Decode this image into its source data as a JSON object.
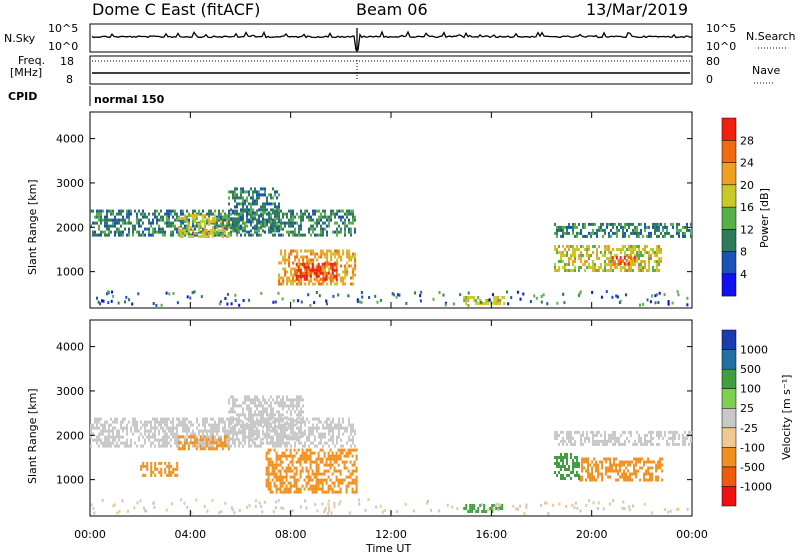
{
  "header": {
    "title": "Dome C East (fitACF)",
    "beam": "Beam 06",
    "date": "13/Mar/2019"
  },
  "top_panels": {
    "nsky_label": "N.Sky",
    "nsky_ticks": [
      "10^5",
      "10^0"
    ],
    "nsearch_label": "N.Search",
    "nsearch_ticks": [
      "10^5",
      "10^0"
    ],
    "freq_label_line1": "Freq.",
    "freq_label_line2": "[MHz]",
    "freq_ticks": [
      "18",
      "8"
    ],
    "nave_label": "Nave",
    "nave_ticks": [
      "80",
      "0"
    ],
    "cpid_label": "CPID",
    "cpid_value": "normal 150"
  },
  "x_axis": {
    "label": "Time UT",
    "ticks": [
      "00:00",
      "04:00",
      "08:00",
      "12:00",
      "16:00",
      "20:00",
      "00:00"
    ]
  },
  "colors": {
    "power_scale": [
      "#1010f0",
      "#1a52b8",
      "#2f7a5a",
      "#58b04a",
      "#c8c828",
      "#f0a020",
      "#f06a10",
      "#f02010"
    ],
    "velocity_scale": [
      "#f01010",
      "#f05a10",
      "#f09020",
      "#f0c890",
      "#c8c8c8",
      "#80d050",
      "#40a040",
      "#2070a0",
      "#1a3cb0"
    ],
    "ground_scatter": "#b4b4b4"
  },
  "chart_data": [
    {
      "type": "heatmap",
      "name_panel": "Power",
      "title": "",
      "xlabel": "Time UT",
      "ylabel": "Slant Range [km]",
      "xlim": [
        0,
        24
      ],
      "ylim": [
        180,
        4600
      ],
      "yticks": [
        "1000",
        "2000",
        "3000",
        "4000"
      ],
      "colorbar_label": "Power [dB]",
      "colorbar_ticks": [
        "4",
        "8",
        "12",
        "16",
        "20",
        "24",
        "28"
      ],
      "colorbar_range": [
        0,
        32
      ],
      "regions": [
        {
          "t": [
            0.0,
            10.6
          ],
          "r": [
            1850,
            2400
          ],
          "level": 9
        },
        {
          "t": [
            3.5,
            5.5
          ],
          "r": [
            1800,
            2300
          ],
          "level": 18
        },
        {
          "t": [
            5.5,
            7.5
          ],
          "r": [
            1900,
            2900
          ],
          "level": 11
        },
        {
          "t": [
            7.5,
            10.6
          ],
          "r": [
            700,
            1500
          ],
          "level": 22
        },
        {
          "t": [
            8.2,
            9.8
          ],
          "r": [
            800,
            1200
          ],
          "level": 28
        },
        {
          "t": [
            14.8,
            16.5
          ],
          "r": [
            300,
            450
          ],
          "level": 18
        },
        {
          "t": [
            18.5,
            24.0
          ],
          "r": [
            1800,
            2100
          ],
          "level": 9
        },
        {
          "t": [
            18.5,
            22.8
          ],
          "r": [
            1000,
            1600
          ],
          "level": 16
        },
        {
          "t": [
            20.8,
            21.8
          ],
          "r": [
            1200,
            1350
          ],
          "level": 24
        }
      ]
    },
    {
      "type": "heatmap",
      "name_panel": "Velocity",
      "title": "",
      "xlabel": "Time UT",
      "ylabel": "Slant Range [km]",
      "xlim": [
        0,
        24
      ],
      "ylim": [
        180,
        4600
      ],
      "yticks": [
        "1000",
        "2000",
        "3000",
        "4000"
      ],
      "colorbar_label": "Velocity [m s⁻¹]",
      "colorbar_ticks": [
        "1000",
        "500",
        "100",
        "25",
        "-25",
        "-100",
        "-500",
        "-1000"
      ],
      "regions": [
        {
          "t": [
            0.0,
            10.6
          ],
          "r": [
            1750,
            2400
          ],
          "velocity": 0
        },
        {
          "t": [
            3.5,
            5.5
          ],
          "r": [
            1700,
            2000
          ],
          "velocity": -300
        },
        {
          "t": [
            5.5,
            8.5
          ],
          "r": [
            1900,
            2900
          ],
          "velocity": 0
        },
        {
          "t": [
            2.0,
            3.5
          ],
          "r": [
            1100,
            1400
          ],
          "velocity": -300
        },
        {
          "t": [
            7.0,
            10.6
          ],
          "r": [
            700,
            1700
          ],
          "velocity": -300
        },
        {
          "t": [
            14.8,
            16.5
          ],
          "r": [
            300,
            450
          ],
          "velocity": 200
        },
        {
          "t": [
            18.5,
            24.0
          ],
          "r": [
            1800,
            2100
          ],
          "velocity": 0
        },
        {
          "t": [
            19.5,
            22.8
          ],
          "r": [
            1000,
            1500
          ],
          "velocity": -300
        },
        {
          "t": [
            18.5,
            19.5
          ],
          "r": [
            1000,
            1600
          ],
          "velocity": 300
        }
      ]
    }
  ]
}
